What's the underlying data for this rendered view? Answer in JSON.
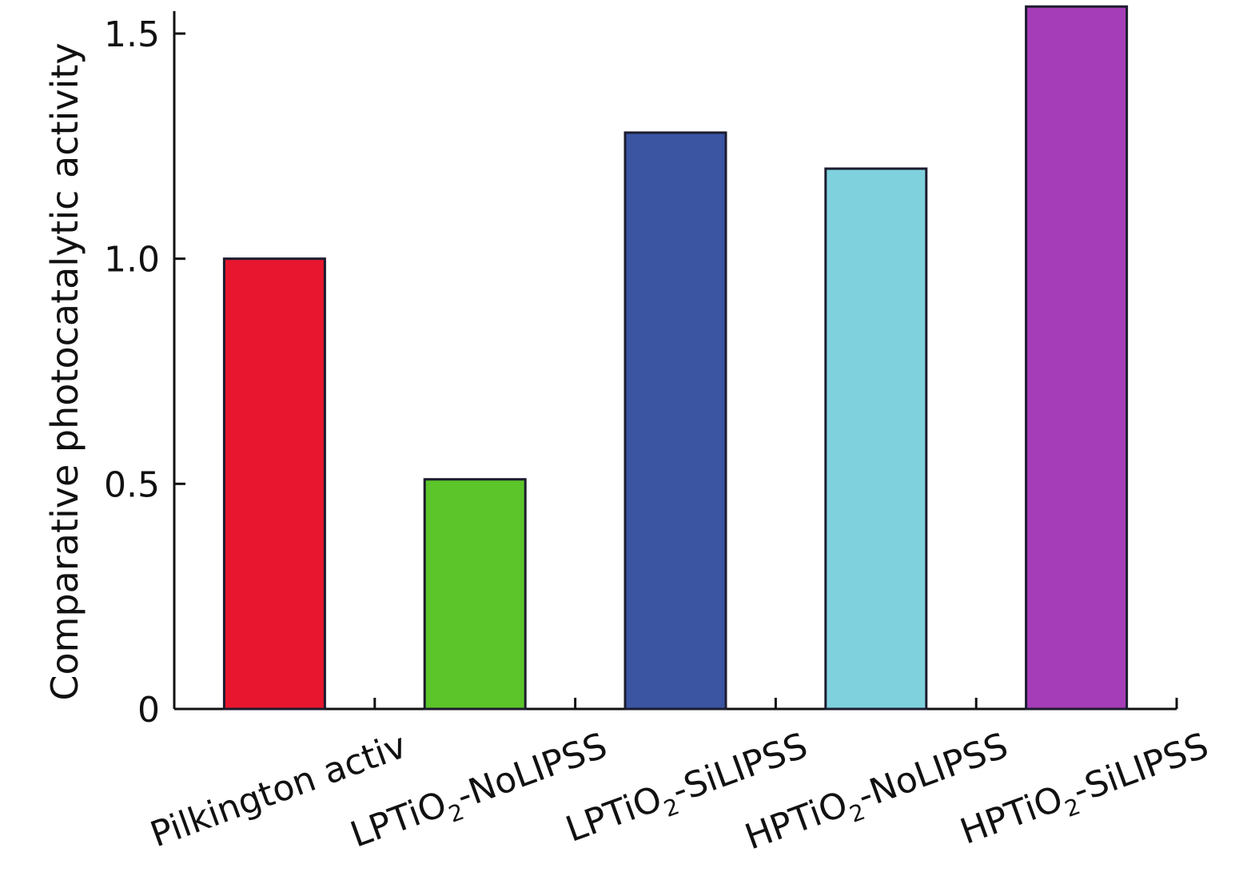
{
  "chart_data": {
    "type": "bar",
    "title": "",
    "xlabel": "",
    "ylabel": "Comparative photocatalytic activity",
    "ylim": [
      0,
      1.55
    ],
    "yticks": [
      {
        "value": 0,
        "label": "0"
      },
      {
        "value": 0.5,
        "label": "0.5"
      },
      {
        "value": 1.0,
        "label": "1.0"
      },
      {
        "value": 1.5,
        "label": "1.5"
      }
    ],
    "categories": [
      {
        "prefix": "Pilkington activ",
        "sub": "",
        "suffix": ""
      },
      {
        "prefix": "LPTiO",
        "sub": "2",
        "suffix": "-NoLIPSS"
      },
      {
        "prefix": "LPTiO",
        "sub": "2",
        "suffix": "-SiLIPSS"
      },
      {
        "prefix": "HPTiO",
        "sub": "2",
        "suffix": "-NoLIPSS"
      },
      {
        "prefix": "HPTiO",
        "sub": "2",
        "suffix": "-SiLIPSS"
      }
    ],
    "values": [
      1.0,
      0.51,
      1.28,
      1.2,
      1.56
    ],
    "colors": [
      "#e8162f",
      "#5cc52a",
      "#3b55a3",
      "#7fd2dd",
      "#a63db8"
    ],
    "grid": false,
    "legend": "none"
  }
}
